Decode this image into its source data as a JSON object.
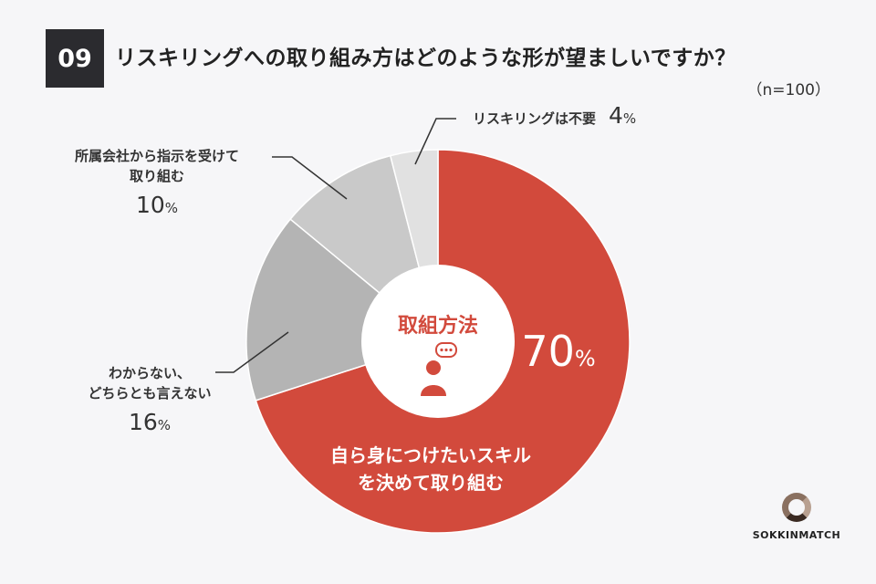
{
  "question": {
    "number": "09",
    "title": "リスキリングへの取り組み方はどのような形が望ましいですか？",
    "sample": "（n=100）"
  },
  "chart_data": {
    "type": "pie",
    "donut": true,
    "center_label": "取組方法",
    "center_icon": "person-chat-icon",
    "unit": "%",
    "slices": [
      {
        "label": "自ら身につけたいスキルを決めて取り組む",
        "value": 70,
        "color": "#d24a3c"
      },
      {
        "label": "わからない、どちらとも言えない",
        "value": 16,
        "color": "#b4b4b4"
      },
      {
        "label": "所属会社から指示を受けて取り組む",
        "value": 10,
        "color": "#c9c9c9"
      },
      {
        "label": "リスキリングは不要",
        "value": 4,
        "color": "#e1e1e1"
      }
    ]
  },
  "labels": {
    "main_line1": "自ら身につけたいスキル",
    "main_line2": "を決めて取り組む",
    "main_pct": "70",
    "unsure_line1": "わからない、",
    "unsure_line2": "どちらとも言えない",
    "unsure_pct": "16",
    "company_line1": "所属会社から指示を受けて",
    "company_line2": "取り組む",
    "company_pct": "10",
    "none_name": "リスキリングは不要",
    "none_pct": "4",
    "pct_sign": "%"
  },
  "logo": {
    "brand": "SOKKINMATCH"
  }
}
